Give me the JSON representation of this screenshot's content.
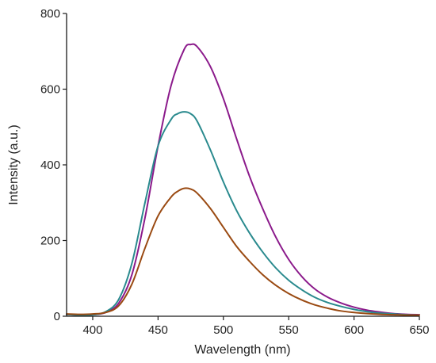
{
  "chart_data": {
    "type": "line",
    "title": "",
    "xlabel": "Wavelength (nm)",
    "ylabel": "Intensity (a.u.)",
    "xlim": [
      380,
      650
    ],
    "ylim": [
      0,
      800
    ],
    "xticks": [
      400,
      450,
      500,
      550,
      600,
      650
    ],
    "yticks": [
      0,
      200,
      400,
      600,
      800
    ],
    "grid": false,
    "legend": "none",
    "series": [
      {
        "color": "#8b1a8b",
        "x": [
          380,
          390,
          400,
          410,
          420,
          430,
          440,
          450,
          460,
          470,
          475,
          480,
          490,
          500,
          510,
          520,
          530,
          540,
          550,
          560,
          570,
          580,
          590,
          600,
          610,
          620,
          630,
          640,
          650
        ],
        "y": [
          5,
          3,
          4,
          10,
          35,
          110,
          260,
          450,
          610,
          705,
          718,
          712,
          660,
          575,
          470,
          370,
          285,
          210,
          150,
          105,
          72,
          50,
          35,
          24,
          16,
          11,
          7,
          5,
          4
        ]
      },
      {
        "color": "#2a8a8e",
        "x": [
          380,
          390,
          400,
          410,
          420,
          430,
          440,
          450,
          460,
          465,
          470,
          475,
          480,
          490,
          500,
          510,
          520,
          530,
          540,
          550,
          560,
          570,
          580,
          590,
          600,
          610,
          620,
          630,
          640,
          650
        ],
        "y": [
          5,
          3,
          4,
          12,
          45,
          140,
          300,
          450,
          520,
          535,
          540,
          535,
          515,
          440,
          355,
          280,
          220,
          170,
          128,
          95,
          70,
          50,
          36,
          26,
          18,
          12,
          8,
          6,
          4,
          3
        ]
      },
      {
        "color": "#9a4a12",
        "x": [
          380,
          390,
          400,
          410,
          420,
          430,
          440,
          450,
          460,
          465,
          470,
          475,
          480,
          490,
          500,
          510,
          520,
          530,
          540,
          550,
          560,
          570,
          580,
          590,
          600,
          610,
          620,
          630,
          640,
          650
        ],
        "y": [
          6,
          5,
          6,
          10,
          28,
          85,
          180,
          265,
          315,
          330,
          338,
          336,
          325,
          285,
          235,
          185,
          145,
          110,
          82,
          60,
          43,
          30,
          21,
          14,
          10,
          7,
          5,
          4,
          3,
          3
        ]
      }
    ]
  }
}
